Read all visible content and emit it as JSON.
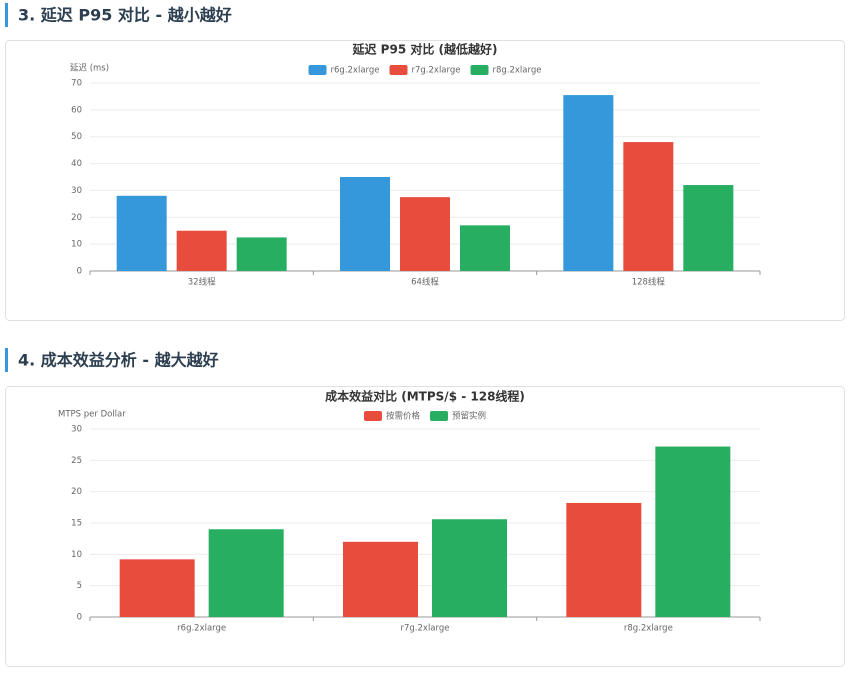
{
  "headings": [
    "3. 延迟 P95 对比 - 越小越好",
    "4. 成本效益分析 - 越大越好"
  ],
  "chart_data": [
    {
      "type": "bar",
      "title": "延迟 P95 对比 (越低越好)",
      "y_label": "延迟 (ms)",
      "categories": [
        "32线程",
        "64线程",
        "128线程"
      ],
      "series": [
        {
          "name": "r6g.2xlarge",
          "color": "#3498db",
          "values": [
            28,
            35,
            65.5
          ]
        },
        {
          "name": "r7g.2xlarge",
          "color": "#e74c3c",
          "values": [
            15,
            27.5,
            48
          ]
        },
        {
          "name": "r8g.2xlarge",
          "color": "#27ae60",
          "values": [
            12.5,
            17,
            32
          ]
        }
      ],
      "ylim": [
        0,
        70
      ],
      "yticks": [
        0,
        10,
        20,
        30,
        40,
        50,
        60,
        70
      ],
      "grid": true,
      "legend": "top"
    },
    {
      "type": "bar",
      "title": "成本效益对比 (MTPS/$ - 128线程)",
      "y_label": "MTPS per Dollar",
      "categories": [
        "r6g.2xlarge",
        "r7g.2xlarge",
        "r8g.2xlarge"
      ],
      "series": [
        {
          "name": "按需价格",
          "color": "#e74c3c",
          "values": [
            9.2,
            12,
            18.2
          ]
        },
        {
          "name": "预留实例",
          "color": "#27ae60",
          "values": [
            14,
            15.6,
            27.2
          ]
        }
      ],
      "ylim": [
        0,
        30
      ],
      "yticks": [
        0,
        5,
        10,
        15,
        20,
        25,
        30
      ],
      "grid": true,
      "legend": "top"
    }
  ]
}
